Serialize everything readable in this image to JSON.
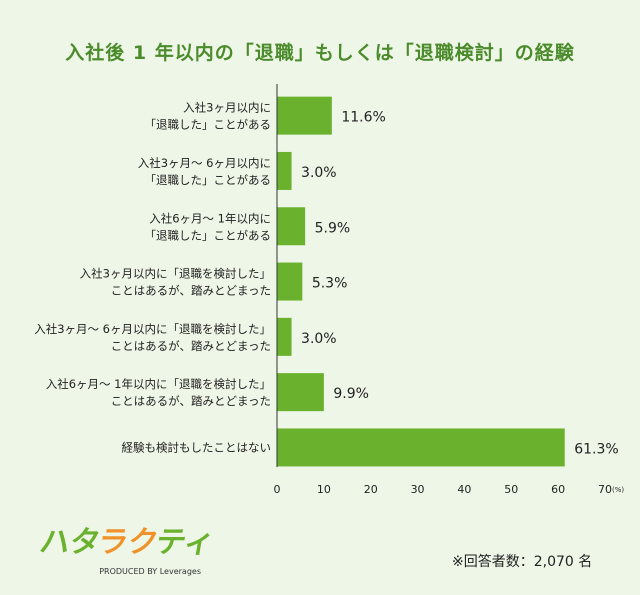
{
  "chart_data": {
    "type": "bar",
    "orientation": "horizontal",
    "title": "入社後 1 年以内の「退職」もしくは「退職検討」の経験",
    "categories": [
      [
        "入社3ヶ月以内に",
        "「退職した」ことがある"
      ],
      [
        "入社3ヶ月～ 6ヶ月以内に",
        "「退職した」ことがある"
      ],
      [
        "入社6ヶ月～ 1年以内に",
        "「退職した」ことがある"
      ],
      [
        "入社3ヶ月以内に「退職を検討した」",
        "ことはあるが、踏みとどまった"
      ],
      [
        "入社3ヶ月～ 6ヶ月以内に「退職を検討した」",
        "ことはあるが、踏みとどまった"
      ],
      [
        "入社6ヶ月～ 1年以内に「退職を検討した」",
        "ことはあるが、踏みとどまった"
      ],
      [
        "経験も検討もしたことはない"
      ]
    ],
    "values": [
      11.6,
      3.0,
      5.9,
      5.3,
      3.0,
      9.9,
      61.3
    ],
    "value_labels": [
      "11.6%",
      "3.0%",
      "5.9%",
      "5.3%",
      "3.0%",
      "9.9%",
      "61.3%"
    ],
    "xlim": [
      0,
      70
    ],
    "xticks": [
      "0",
      "10",
      "20",
      "30",
      "40",
      "50",
      "60",
      "70"
    ],
    "xunit": "(%)",
    "grid": false,
    "bar_color": "#6ab22e"
  },
  "logo": {
    "text": "ハタラクティブ",
    "sub": "PRODUCED BY Leverages"
  },
  "note": "※回答者数：2,070 名",
  "colors": {
    "background": "#eef7e7",
    "title": "#4b8b2b"
  }
}
